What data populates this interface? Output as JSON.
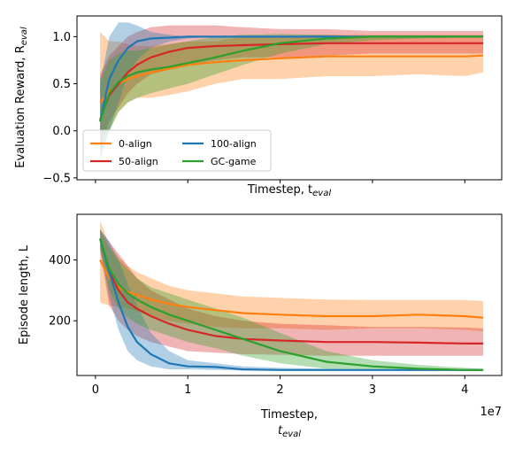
{
  "chart_data": [
    {
      "type": "line",
      "ylabel": "Evaluation Reward, R",
      "ylabel_sub": "eval",
      "xlabel": "Timestep, t",
      "xlabel_sub": "eval",
      "ylim": [
        -0.52,
        1.22
      ],
      "xlim": [
        -0.2,
        4.4
      ],
      "yticks": [
        -0.5,
        0.0,
        0.5,
        1.0
      ],
      "ytick_labels": [
        "−0.5",
        "0.0",
        "0.5",
        "1.0"
      ],
      "xticks": [
        0,
        1,
        2,
        3,
        4
      ],
      "xtick_labels_visible": false,
      "legend": {
        "loc": "lower-left",
        "ncol": 2
      },
      "x": [
        0.05,
        0.15,
        0.25,
        0.35,
        0.45,
        0.6,
        0.8,
        1.0,
        1.3,
        1.6,
        2.0,
        2.5,
        3.0,
        3.5,
        4.0,
        4.2
      ],
      "series": [
        {
          "name": "0-align",
          "color": "#ff7f0e",
          "values": [
            0.3,
            0.42,
            0.5,
            0.55,
            0.58,
            0.62,
            0.66,
            0.7,
            0.73,
            0.75,
            0.77,
            0.79,
            0.79,
            0.79,
            0.79,
            0.8
          ],
          "lower": [
            0.0,
            0.0,
            0.2,
            0.3,
            0.35,
            0.35,
            0.38,
            0.42,
            0.5,
            0.55,
            0.55,
            0.58,
            0.58,
            0.6,
            0.58,
            0.62
          ],
          "upper": [
            1.05,
            0.95,
            0.95,
            0.92,
            0.9,
            0.9,
            0.92,
            0.95,
            0.95,
            1.0,
            1.0,
            1.02,
            1.02,
            1.02,
            1.02,
            1.02
          ]
        },
        {
          "name": "50-align",
          "color": "#d62728",
          "values": [
            0.12,
            0.38,
            0.5,
            0.62,
            0.7,
            0.78,
            0.84,
            0.88,
            0.9,
            0.91,
            0.92,
            0.93,
            0.93,
            0.93,
            0.93,
            0.93
          ],
          "lower": [
            -0.2,
            0.1,
            0.25,
            0.4,
            0.5,
            0.6,
            0.65,
            0.7,
            0.75,
            0.78,
            0.78,
            0.8,
            0.82,
            0.82,
            0.82,
            0.82
          ],
          "upper": [
            0.6,
            0.8,
            0.9,
            1.0,
            1.05,
            1.1,
            1.12,
            1.12,
            1.12,
            1.1,
            1.08,
            1.08,
            1.06,
            1.06,
            1.06,
            1.06
          ]
        },
        {
          "name": "100-align",
          "color": "#1f77b4",
          "values": [
            0.1,
            0.55,
            0.75,
            0.88,
            0.95,
            0.98,
            0.99,
            1.0,
            1.0,
            1.0,
            1.0,
            1.0,
            1.0,
            1.0,
            1.0,
            1.0
          ],
          "lower": [
            -0.3,
            0.0,
            0.3,
            0.6,
            0.75,
            0.88,
            0.95,
            0.98,
            1.0,
            1.0,
            1.0,
            1.0,
            1.0,
            1.0,
            1.0,
            1.0
          ],
          "upper": [
            0.5,
            1.0,
            1.15,
            1.15,
            1.12,
            1.05,
            1.02,
            1.0,
            1.0,
            1.0,
            1.0,
            1.0,
            1.0,
            1.0,
            1.0,
            1.0
          ]
        },
        {
          "name": "GC-game",
          "color": "#2ca02c",
          "values": [
            0.1,
            0.4,
            0.52,
            0.58,
            0.62,
            0.65,
            0.68,
            0.72,
            0.78,
            0.85,
            0.93,
            0.98,
            1.0,
            1.0,
            1.0,
            1.0
          ],
          "lower": [
            -0.3,
            0.0,
            0.2,
            0.3,
            0.35,
            0.4,
            0.45,
            0.5,
            0.6,
            0.7,
            0.82,
            0.92,
            0.96,
            0.98,
            0.99,
            1.0
          ],
          "upper": [
            0.55,
            0.75,
            0.82,
            0.85,
            0.85,
            0.88,
            0.92,
            0.95,
            1.0,
            1.02,
            1.03,
            1.02,
            1.0,
            1.0,
            1.0,
            1.0
          ]
        }
      ]
    },
    {
      "type": "line",
      "ylabel": "Episode length, L",
      "xlabel": "Timestep,",
      "xlabel_line2": "t",
      "xlabel_line2_sub": "eval",
      "x_scale_label": "1e7",
      "xlim": [
        -0.2,
        4.4
      ],
      "ylim": [
        20,
        550
      ],
      "yticks": [
        200,
        400
      ],
      "ytick_labels": [
        "200",
        "400"
      ],
      "xticks": [
        0,
        1,
        2,
        3,
        4
      ],
      "xtick_labels": [
        "0",
        "1",
        "2",
        "3",
        "4"
      ],
      "x": [
        0.05,
        0.15,
        0.25,
        0.35,
        0.45,
        0.6,
        0.8,
        1.0,
        1.3,
        1.6,
        2.0,
        2.5,
        3.0,
        3.5,
        4.0,
        4.2
      ],
      "series": [
        {
          "name": "0-align",
          "color": "#ff7f0e",
          "values": [
            400,
            340,
            310,
            295,
            285,
            270,
            255,
            245,
            235,
            225,
            220,
            215,
            215,
            220,
            215,
            210
          ],
          "lower": [
            260,
            250,
            245,
            240,
            230,
            215,
            200,
            190,
            180,
            175,
            175,
            170,
            175,
            175,
            170,
            165
          ],
          "upper": [
            530,
            450,
            410,
            380,
            360,
            340,
            315,
            300,
            290,
            280,
            275,
            270,
            268,
            268,
            268,
            265
          ]
        },
        {
          "name": "50-align",
          "color": "#d62728",
          "values": [
            470,
            360,
            300,
            260,
            240,
            215,
            190,
            170,
            150,
            140,
            135,
            130,
            130,
            128,
            125,
            125
          ],
          "lower": [
            430,
            250,
            200,
            170,
            150,
            130,
            115,
            100,
            95,
            90,
            88,
            85,
            85,
            85,
            85,
            85
          ],
          "upper": [
            500,
            460,
            420,
            380,
            340,
            300,
            270,
            240,
            215,
            200,
            190,
            185,
            180,
            180,
            178,
            175
          ]
        },
        {
          "name": "100-align",
          "color": "#1f77b4",
          "values": [
            470,
            360,
            260,
            180,
            130,
            90,
            60,
            50,
            48,
            40,
            38,
            38,
            38,
            38,
            38,
            38
          ],
          "lower": [
            440,
            280,
            170,
            100,
            70,
            50,
            40,
            40,
            38,
            36,
            36,
            36,
            36,
            36,
            36,
            36
          ],
          "upper": [
            500,
            460,
            400,
            320,
            250,
            160,
            100,
            70,
            60,
            50,
            45,
            42,
            40,
            40,
            40,
            40
          ]
        },
        {
          "name": "GC-game",
          "color": "#2ca02c",
          "values": [
            470,
            370,
            320,
            290,
            270,
            245,
            220,
            200,
            170,
            140,
            100,
            65,
            50,
            42,
            38,
            38
          ],
          "lower": [
            440,
            300,
            240,
            210,
            190,
            170,
            150,
            130,
            110,
            85,
            60,
            42,
            38,
            36,
            36,
            36
          ],
          "upper": [
            500,
            440,
            400,
            370,
            340,
            310,
            290,
            270,
            240,
            210,
            160,
            100,
            70,
            55,
            45,
            42
          ]
        }
      ]
    }
  ]
}
